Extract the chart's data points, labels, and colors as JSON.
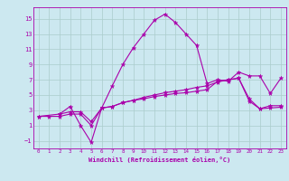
{
  "xlabel": "Windchill (Refroidissement éolien,°C)",
  "x_ticks": [
    0,
    1,
    2,
    3,
    4,
    5,
    6,
    7,
    8,
    9,
    10,
    11,
    12,
    13,
    14,
    15,
    16,
    17,
    18,
    19,
    20,
    21,
    22,
    23
  ],
  "y_ticks": [
    -1,
    1,
    3,
    5,
    7,
    9,
    11,
    13,
    15
  ],
  "ylim": [
    -2,
    16.5
  ],
  "xlim": [
    -0.5,
    23.5
  ],
  "background_color": "#cce8f0",
  "line_color": "#aa00aa",
  "grid_color": "#aacccc",
  "line1_x": [
    0,
    1,
    2,
    3,
    4,
    5,
    6,
    7,
    8,
    9,
    10,
    11,
    12,
    13,
    14,
    15,
    16,
    17,
    18,
    19,
    20,
    21,
    22,
    23
  ],
  "line1_y": [
    2.2,
    2.2,
    2.2,
    2.5,
    2.5,
    1.0,
    3.3,
    3.5,
    4.0,
    4.3,
    4.5,
    4.8,
    5.0,
    5.2,
    5.3,
    5.5,
    5.7,
    6.8,
    7.0,
    7.2,
    4.2,
    3.2,
    3.3,
    3.4
  ],
  "line2_x": [
    0,
    2,
    3,
    4,
    5,
    6,
    7,
    8,
    9,
    10,
    11,
    12,
    13,
    14,
    15,
    16,
    17,
    18,
    19,
    20,
    21,
    22,
    23
  ],
  "line2_y": [
    2.2,
    2.5,
    2.8,
    2.8,
    1.5,
    3.3,
    3.5,
    4.0,
    4.3,
    4.7,
    5.0,
    5.3,
    5.5,
    5.7,
    6.0,
    6.2,
    6.7,
    7.0,
    7.2,
    4.5,
    3.2,
    3.6,
    3.6
  ],
  "line3_x": [
    2,
    3,
    4,
    5,
    6,
    7,
    8,
    9,
    10,
    11,
    12,
    13,
    14,
    15,
    16,
    17,
    18,
    19,
    20,
    21,
    22,
    23
  ],
  "line3_y": [
    2.5,
    3.5,
    1.0,
    -1.2,
    3.3,
    6.2,
    9.0,
    11.2,
    13.0,
    14.8,
    15.6,
    14.5,
    13.0,
    11.5,
    6.5,
    7.0,
    6.8,
    8.0,
    7.5,
    7.5,
    5.2,
    7.2
  ]
}
